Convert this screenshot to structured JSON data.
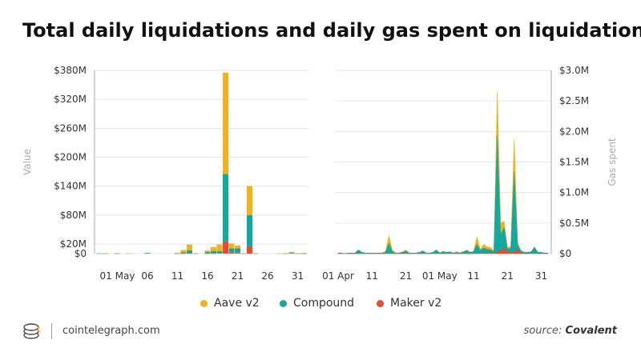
{
  "title": "Total daily liquidations and daily gas spent on liquidations",
  "colors": {
    "aave": "#f2b21a",
    "compound": "#12aaa0",
    "maker": "#e84a34",
    "axis": "#888888",
    "grid": "#e6e6e6"
  },
  "legend": [
    {
      "name": "Aave v2",
      "color": "#f2b21a"
    },
    {
      "name": "Compound",
      "color": "#12aaa0"
    },
    {
      "name": "Maker v2",
      "color": "#e84a34"
    }
  ],
  "footer": {
    "site": "cointelegraph.com",
    "source_prefix": "source: ",
    "source_name": "Covalent",
    "logo_icon": "cointelegraph-logo-icon"
  },
  "chart_data": [
    {
      "type": "bar",
      "stacked": true,
      "ylabel": "Value",
      "ylim": [
        0,
        380
      ],
      "y_ticks": [
        0,
        20,
        80,
        140,
        200,
        260,
        320,
        380
      ],
      "y_tick_labels": [
        "$0",
        "$20M",
        "$80M",
        "$140M",
        "$200M",
        "$260M",
        "$320M",
        "$380M"
      ],
      "x": [
        "2021-04-28",
        "2021-04-29",
        "2021-04-30",
        "2021-05-01",
        "2021-05-02",
        "2021-05-03",
        "2021-05-04",
        "2021-05-05",
        "2021-05-06",
        "2021-05-07",
        "2021-05-08",
        "2021-05-09",
        "2021-05-10",
        "2021-05-11",
        "2021-05-12",
        "2021-05-13",
        "2021-05-14",
        "2021-05-15",
        "2021-05-16",
        "2021-05-17",
        "2021-05-18",
        "2021-05-19",
        "2021-05-20",
        "2021-05-21",
        "2021-05-22",
        "2021-05-23",
        "2021-05-24",
        "2021-05-25",
        "2021-05-26",
        "2021-05-27",
        "2021-05-28",
        "2021-05-29",
        "2021-05-30",
        "2021-05-31",
        "2021-06-01"
      ],
      "x_ticks": [
        "01 May",
        "06",
        "11",
        "16",
        "21",
        "26",
        "31"
      ],
      "x_tick_values": [
        "2021-05-01",
        "2021-05-06",
        "2021-05-11",
        "2021-05-16",
        "2021-05-21",
        "2021-05-26",
        "2021-05-31"
      ],
      "series": [
        {
          "name": "Maker v2",
          "values": [
            0,
            0,
            0,
            0,
            0,
            0,
            0,
            0,
            0,
            0,
            0,
            0,
            0,
            0,
            0.5,
            0.8,
            0,
            0,
            0.5,
            0.5,
            1,
            25,
            3,
            2,
            0,
            15,
            0,
            0,
            0,
            0,
            0,
            0,
            0,
            0,
            0
          ]
        },
        {
          "name": "Compound",
          "values": [
            0.5,
            0.5,
            0,
            0.5,
            0,
            0,
            0,
            0,
            1.5,
            0,
            0,
            0,
            0,
            0.5,
            2,
            6,
            0.5,
            0,
            3,
            5,
            4,
            140,
            8,
            9,
            0.5,
            65,
            0.5,
            0,
            0,
            0,
            0,
            0.5,
            2,
            0.5,
            0.5
          ]
        },
        {
          "name": "Aave v2",
          "values": [
            0,
            0.5,
            0,
            0.5,
            0,
            0.5,
            0,
            0,
            0,
            0,
            0,
            0,
            0,
            1,
            5,
            12,
            0.5,
            0,
            3,
            8,
            14,
            210,
            10,
            6,
            0.5,
            60,
            0.5,
            0,
            0,
            0,
            0.5,
            0.5,
            1.5,
            0.5,
            1
          ]
        }
      ]
    },
    {
      "type": "area",
      "stacked": true,
      "ylabel": "Gas spent",
      "ylim": [
        0,
        3.0
      ],
      "y_ticks": [
        0,
        0.5,
        1.0,
        1.5,
        2.0,
        2.5,
        3.0
      ],
      "y_tick_labels": [
        "$0",
        "$0.5M",
        "$1.0M",
        "$1.5M",
        "$2.0M",
        "$2.5M",
        "$3.0M"
      ],
      "x": [
        "2021-04-01",
        "2021-04-02",
        "2021-04-03",
        "2021-04-04",
        "2021-04-05",
        "2021-04-06",
        "2021-04-07",
        "2021-04-08",
        "2021-04-09",
        "2021-04-10",
        "2021-04-11",
        "2021-04-12",
        "2021-04-13",
        "2021-04-14",
        "2021-04-15",
        "2021-04-16",
        "2021-04-17",
        "2021-04-18",
        "2021-04-19",
        "2021-04-20",
        "2021-04-21",
        "2021-04-22",
        "2021-04-23",
        "2021-04-24",
        "2021-04-25",
        "2021-04-26",
        "2021-04-27",
        "2021-04-28",
        "2021-04-29",
        "2021-04-30",
        "2021-05-01",
        "2021-05-02",
        "2021-05-03",
        "2021-05-04",
        "2021-05-05",
        "2021-05-06",
        "2021-05-07",
        "2021-05-08",
        "2021-05-09",
        "2021-05-10",
        "2021-05-11",
        "2021-05-12",
        "2021-05-13",
        "2021-05-14",
        "2021-05-15",
        "2021-05-16",
        "2021-05-17",
        "2021-05-18",
        "2021-05-19",
        "2021-05-20",
        "2021-05-21",
        "2021-05-22",
        "2021-05-23",
        "2021-05-24",
        "2021-05-25",
        "2021-05-26",
        "2021-05-27",
        "2021-05-28",
        "2021-05-29",
        "2021-05-30",
        "2021-05-31",
        "2021-06-01",
        "2021-06-02"
      ],
      "x_ticks": [
        "01 Apr",
        "11",
        "21",
        "01 May",
        "11",
        "21",
        "31"
      ],
      "x_tick_values": [
        "2021-04-01",
        "2021-04-11",
        "2021-04-21",
        "2021-05-01",
        "2021-05-11",
        "2021-05-21",
        "2021-05-31"
      ],
      "series": [
        {
          "name": "Maker v2",
          "values": [
            0,
            0,
            0,
            0,
            0,
            0,
            0,
            0,
            0,
            0,
            0,
            0,
            0,
            0,
            0,
            0,
            0,
            0,
            0,
            0,
            0,
            0,
            0,
            0,
            0,
            0,
            0,
            0,
            0,
            0,
            0,
            0,
            0,
            0,
            0,
            0,
            0,
            0,
            0,
            0,
            0,
            0,
            0,
            0.01,
            0.01,
            0.01,
            0,
            0.03,
            0.05,
            0.08,
            0.03,
            0.02,
            0.03,
            0.06,
            0.01,
            0,
            0,
            0,
            0,
            0,
            0,
            0,
            0
          ]
        },
        {
          "name": "Compound",
          "values": [
            0.01,
            0.01,
            0,
            0.01,
            0.01,
            0.01,
            0.06,
            0.02,
            0.01,
            0.01,
            0.01,
            0.01,
            0.01,
            0.01,
            0.02,
            0.17,
            0.03,
            0.01,
            0.01,
            0.02,
            0.04,
            0.01,
            0.01,
            0.01,
            0.02,
            0.04,
            0.01,
            0.01,
            0.02,
            0.06,
            0.01,
            0.03,
            0.02,
            0.03,
            0.01,
            0.02,
            0.01,
            0.03,
            0.05,
            0.02,
            0.03,
            0.15,
            0.05,
            0.08,
            0.06,
            0.05,
            0.03,
            1.9,
            0.25,
            0.35,
            0.05,
            0.06,
            1.3,
            0.08,
            0.03,
            0.02,
            0.02,
            0.03,
            0.1,
            0.02,
            0.02,
            0.01,
            0.01
          ]
        },
        {
          "name": "Aave v2",
          "values": [
            0,
            0,
            0,
            0,
            0,
            0,
            0,
            0,
            0,
            0,
            0,
            0,
            0,
            0,
            0.02,
            0.12,
            0.03,
            0,
            0,
            0.01,
            0.02,
            0,
            0,
            0,
            0,
            0.01,
            0,
            0,
            0,
            0,
            0,
            0.01,
            0,
            0,
            0,
            0.01,
            0,
            0,
            0.01,
            0,
            0.01,
            0.12,
            0.02,
            0.06,
            0.04,
            0.04,
            0.02,
            0.72,
            0.2,
            0.1,
            0.02,
            0.04,
            0.55,
            0.05,
            0.01,
            0,
            0,
            0,
            0.01,
            0,
            0,
            0,
            0
          ]
        }
      ]
    }
  ]
}
